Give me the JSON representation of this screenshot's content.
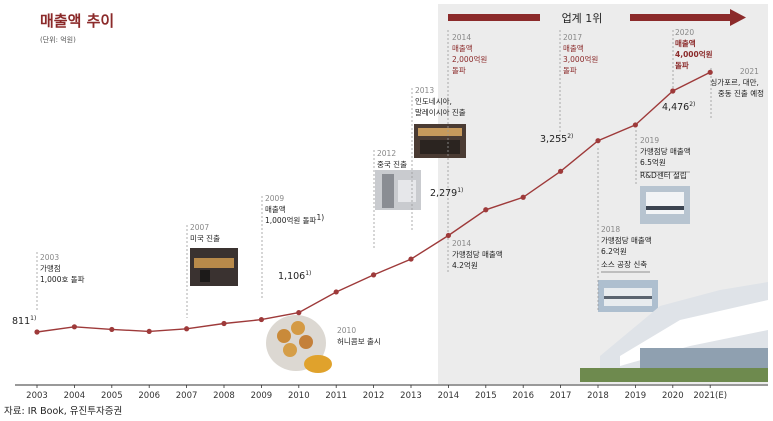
{
  "title": "매출액 추이",
  "unit": "(단위: 억원)",
  "source": "자료: IR Book, 유진투자증권",
  "banner": "업계 1위",
  "colors": {
    "line": "#9e3a3a",
    "banner": "#8b2a2a",
    "shade": "#ececec"
  },
  "chart_data": {
    "type": "line",
    "categories": [
      "2003",
      "2004",
      "2005",
      "2006",
      "2007",
      "2008",
      "2009",
      "2010",
      "2011",
      "2012",
      "2013",
      "2014",
      "2015",
      "2016",
      "2017",
      "2018",
      "2019",
      "2020",
      "2021(E)"
    ],
    "series": [
      {
        "values": [
          811,
          890,
          850,
          820,
          860,
          940,
          1000,
          1106,
          1420,
          1680,
          1920,
          2279,
          2670,
          2860,
          3255,
          3720,
          3960,
          4476,
          4760
        ]
      }
    ],
    "labeled_values": [
      {
        "label": "811",
        "sup": "1)"
      },
      {
        "label": "1,106",
        "sup": "1)"
      },
      {
        "label": "2,279",
        "sup": "1)"
      },
      {
        "label": "3,255",
        "sup": "2)"
      },
      {
        "label": "4,476",
        "sup": "2)"
      }
    ],
    "shaded_from": "2014",
    "annotations": [
      {
        "lines": [
          "2003",
          "가맹점",
          "1,000호 돌파"
        ]
      },
      {
        "lines": [
          "2007",
          "미국 진출"
        ]
      },
      {
        "lines": [
          "2009",
          "매출액",
          "1,000억원 돌파"
        ]
      },
      {
        "lines": [
          "2010",
          "허니콤보 출시"
        ]
      },
      {
        "lines": [
          "2012",
          "중국 진출"
        ]
      },
      {
        "lines": [
          "2013",
          "인도네시아,",
          "말레이시아 진출"
        ]
      },
      {
        "lines": [
          "2014",
          "매출액",
          "2,000억원",
          "돌파"
        ]
      },
      {
        "lines": [
          "2014",
          "가맹점당 매출액",
          "4.2억원"
        ]
      },
      {
        "lines": [
          "2017",
          "매출액",
          "3,000억원",
          "돌파"
        ]
      },
      {
        "lines": [
          "2018",
          "가맹점당 매출액",
          "6.2억원",
          "소스 공장 신축"
        ]
      },
      {
        "lines": [
          "2019",
          "가맹점당 매출액",
          "6.5억원",
          "R&D센터 설립"
        ]
      },
      {
        "lines": [
          "2020",
          "매출액",
          "4,000억원",
          "돌파"
        ]
      },
      {
        "lines": [
          "2021",
          "싱가포르, 대만,",
          "중동 진출 예정"
        ]
      }
    ]
  }
}
